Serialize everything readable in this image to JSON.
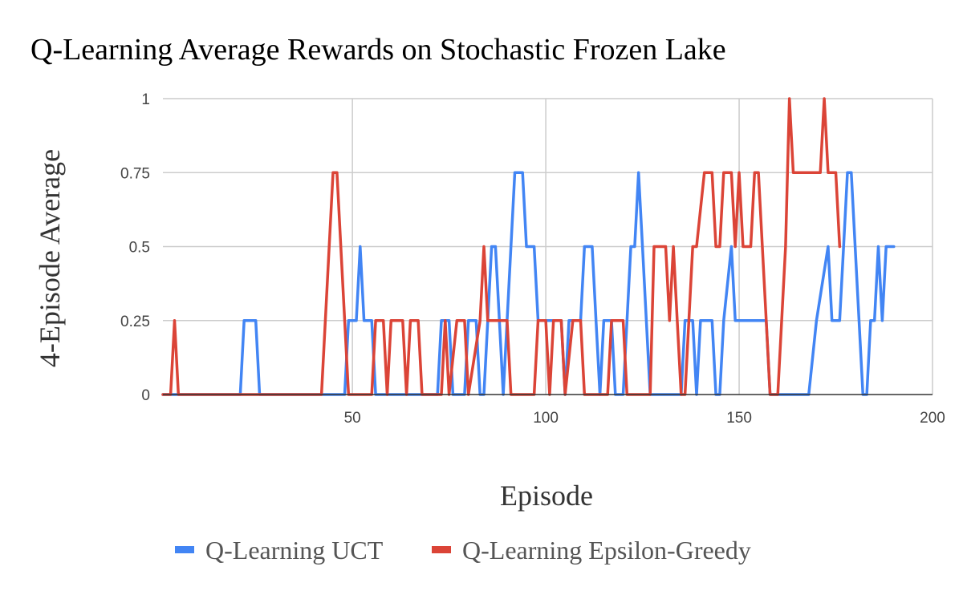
{
  "chart_data": {
    "type": "line",
    "title": "Q-Learning Average Rewards on Stochastic Frozen Lake",
    "xlabel": "Episode",
    "ylabel": "4-Episode Average",
    "xlim": [
      1,
      200
    ],
    "ylim": [
      0,
      1
    ],
    "x_ticks": [
      50,
      100,
      150,
      200
    ],
    "x_tick_labels": [
      "50",
      "100",
      "150",
      "200"
    ],
    "y_ticks": [
      0,
      0.25,
      0.5,
      0.75,
      1
    ],
    "y_tick_labels": [
      "0",
      "0.25",
      "0.5",
      "0.75",
      "1"
    ],
    "grid": true,
    "legend": "bottom",
    "series": [
      {
        "name": "Q-Learning UCT",
        "color": "#4285f4",
        "points": [
          [
            1,
            0
          ],
          [
            21,
            0
          ],
          [
            22,
            0.25
          ],
          [
            25,
            0.25
          ],
          [
            26,
            0
          ],
          [
            48,
            0
          ],
          [
            49,
            0.25
          ],
          [
            51,
            0.25
          ],
          [
            52,
            0.5
          ],
          [
            53,
            0.25
          ],
          [
            55,
            0.25
          ],
          [
            56,
            0
          ],
          [
            72,
            0
          ],
          [
            73,
            0.25
          ],
          [
            75,
            0.25
          ],
          [
            76,
            0
          ],
          [
            79,
            0
          ],
          [
            80,
            0.25
          ],
          [
            82,
            0.25
          ],
          [
            83,
            0
          ],
          [
            84,
            0
          ],
          [
            85,
            0.25
          ],
          [
            86,
            0.5
          ],
          [
            87,
            0.5
          ],
          [
            88,
            0.25
          ],
          [
            89,
            0
          ],
          [
            90,
            0.25
          ],
          [
            91,
            0.5
          ],
          [
            92,
            0.75
          ],
          [
            94,
            0.75
          ],
          [
            95,
            0.5
          ],
          [
            97,
            0.5
          ],
          [
            98,
            0.25
          ],
          [
            104,
            0.25
          ],
          [
            105,
            0
          ],
          [
            106,
            0.25
          ],
          [
            109,
            0.25
          ],
          [
            110,
            0.5
          ],
          [
            112,
            0.5
          ],
          [
            113,
            0.25
          ],
          [
            114,
            0
          ],
          [
            115,
            0.25
          ],
          [
            117,
            0.25
          ],
          [
            118,
            0
          ],
          [
            120,
            0
          ],
          [
            121,
            0.25
          ],
          [
            122,
            0.5
          ],
          [
            123,
            0.5
          ],
          [
            124,
            0.75
          ],
          [
            125,
            0.5
          ],
          [
            126,
            0.25
          ],
          [
            127,
            0
          ],
          [
            135,
            0
          ],
          [
            136,
            0.25
          ],
          [
            138,
            0.25
          ],
          [
            139,
            0
          ],
          [
            140,
            0.25
          ],
          [
            143,
            0.25
          ],
          [
            144,
            0
          ],
          [
            145,
            0
          ],
          [
            146,
            0.25
          ],
          [
            148,
            0.5
          ],
          [
            149,
            0.25
          ],
          [
            157,
            0.25
          ],
          [
            158,
            0
          ],
          [
            168,
            0
          ],
          [
            170,
            0.25
          ],
          [
            173,
            0.5
          ],
          [
            174,
            0.25
          ],
          [
            176,
            0.25
          ],
          [
            177,
            0.5
          ],
          [
            178,
            0.75
          ],
          [
            179,
            0.75
          ],
          [
            180,
            0.5
          ],
          [
            182,
            0
          ],
          [
            183,
            0
          ],
          [
            184,
            0.25
          ],
          [
            185,
            0.25
          ],
          [
            186,
            0.5
          ],
          [
            187,
            0.25
          ],
          [
            188,
            0.5
          ],
          [
            190,
            0.5
          ]
        ]
      },
      {
        "name": "Q-Learning Epsilon-Greedy",
        "color": "#db4437",
        "points": [
          [
            1,
            0
          ],
          [
            3,
            0
          ],
          [
            4,
            0.25
          ],
          [
            5,
            0
          ],
          [
            42,
            0
          ],
          [
            45,
            0.75
          ],
          [
            46,
            0.75
          ],
          [
            49,
            0
          ],
          [
            55,
            0
          ],
          [
            56,
            0.25
          ],
          [
            58,
            0.25
          ],
          [
            59,
            0
          ],
          [
            60,
            0.25
          ],
          [
            63,
            0.25
          ],
          [
            64,
            0
          ],
          [
            65,
            0.25
          ],
          [
            67,
            0.25
          ],
          [
            68,
            0
          ],
          [
            73,
            0
          ],
          [
            74,
            0.25
          ],
          [
            75,
            0
          ],
          [
            77,
            0.25
          ],
          [
            79,
            0.25
          ],
          [
            80,
            0
          ],
          [
            83,
            0.25
          ],
          [
            84,
            0.5
          ],
          [
            85,
            0.25
          ],
          [
            90,
            0.25
          ],
          [
            91,
            0
          ],
          [
            97,
            0
          ],
          [
            98,
            0.25
          ],
          [
            100,
            0.25
          ],
          [
            101,
            0
          ],
          [
            102,
            0.25
          ],
          [
            104,
            0.25
          ],
          [
            105,
            0
          ],
          [
            107,
            0.25
          ],
          [
            109,
            0.25
          ],
          [
            110,
            0
          ],
          [
            116,
            0
          ],
          [
            117,
            0.25
          ],
          [
            120,
            0.25
          ],
          [
            121,
            0
          ],
          [
            127,
            0
          ],
          [
            128,
            0.5
          ],
          [
            131,
            0.5
          ],
          [
            132,
            0.25
          ],
          [
            133,
            0.5
          ],
          [
            134,
            0.25
          ],
          [
            135,
            0
          ],
          [
            136,
            0
          ],
          [
            138,
            0.5
          ],
          [
            139,
            0.5
          ],
          [
            141,
            0.75
          ],
          [
            143,
            0.75
          ],
          [
            144,
            0.5
          ],
          [
            145,
            0.5
          ],
          [
            146,
            0.75
          ],
          [
            148,
            0.75
          ],
          [
            149,
            0.5
          ],
          [
            150,
            0.75
          ],
          [
            151,
            0.5
          ],
          [
            153,
            0.5
          ],
          [
            154,
            0.75
          ],
          [
            155,
            0.75
          ],
          [
            157,
            0.25
          ],
          [
            158,
            0
          ],
          [
            160,
            0
          ],
          [
            162,
            0.5
          ],
          [
            163,
            1
          ],
          [
            164,
            0.75
          ],
          [
            171,
            0.75
          ],
          [
            172,
            1
          ],
          [
            173,
            0.75
          ],
          [
            175,
            0.75
          ],
          [
            176,
            0.5
          ]
        ]
      }
    ]
  }
}
